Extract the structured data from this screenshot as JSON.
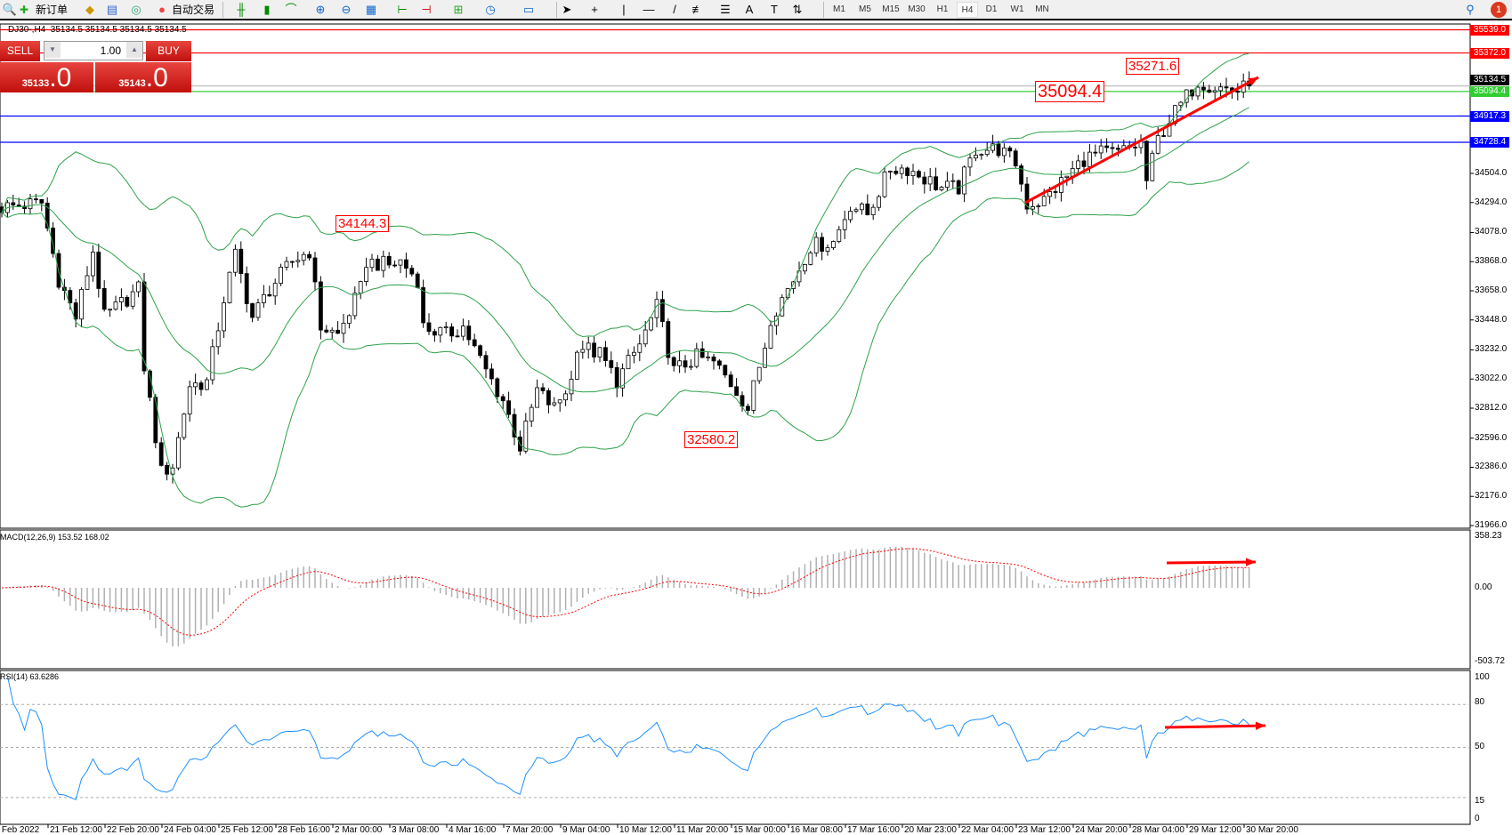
{
  "toolbar": {
    "new_order": "新订单",
    "auto_trading": "自动交易",
    "timeframes": [
      "M1",
      "M5",
      "M15",
      "M30",
      "H1",
      "H4",
      "D1",
      "W1",
      "MN"
    ],
    "active_timeframe": "H4",
    "notifications": "1"
  },
  "chart": {
    "header": "DJ30-,H4  35134.5 35134.5 35134.5 35134.5"
  },
  "one_click": {
    "sell": "SELL",
    "buy": "BUY",
    "volume": "1.00",
    "bid_main": "35133",
    "bid_pip": ".0",
    "ask_main": "35143",
    "ask_pip": ".0"
  },
  "hlines": [
    {
      "price": "35539.0",
      "color": "#ff0000"
    },
    {
      "price": "35372.0",
      "color": "#ff0000"
    },
    {
      "price": "35134.5",
      "color": "#000000",
      "line": "#c0c0c0"
    },
    {
      "price": "35094.4",
      "color": "#32cd32"
    },
    {
      "price": "34917.3",
      "color": "#0000ff"
    },
    {
      "price": "34728.4",
      "color": "#0000ff"
    }
  ],
  "price_axis": [
    "34504.0",
    "34294.0",
    "34078.0",
    "33868.0",
    "33658.0",
    "33448.0",
    "33232.0",
    "33022.0",
    "32812.0",
    "32596.0",
    "32386.0",
    "32176.0",
    "31966.0"
  ],
  "annotations": [
    {
      "text": "34144.3"
    },
    {
      "text": "32580.2"
    },
    {
      "text": "35271.6"
    },
    {
      "text": "35094.4"
    }
  ],
  "macd": {
    "label": "MACD(12,26,9) 153.52 168.02",
    "axis": [
      "358.23",
      "0.00",
      "-503.72"
    ],
    "max": 358.23,
    "min": -503.72
  },
  "rsi": {
    "label": "RSI(14) 63.6286",
    "axis": [
      "100",
      "80",
      "50",
      "15",
      "0"
    ],
    "levels": [
      80,
      50,
      15
    ]
  },
  "time_axis": [
    "18 Feb 2022",
    "21 Feb 12:00",
    "22 Feb 20:00",
    "24 Feb 04:00",
    "25 Feb 12:00",
    "28 Feb 16:00",
    "2 Mar 00:00",
    "3 Mar 08:00",
    "4 Mar 16:00",
    "7 Mar 20:00",
    "9 Mar 04:00",
    "10 Mar 12:00",
    "11 Mar 20:00",
    "15 Mar 00:00",
    "16 Mar 08:00",
    "17 Mar 16:00",
    "20 Mar 23:00",
    "22 Mar 04:00",
    "23 Mar 12:00",
    "24 Mar 20:00",
    "28 Mar 04:00",
    "29 Mar 12:00",
    "30 Mar 20:00"
  ],
  "chart_data": {
    "type": "candlestick",
    "symbol": "DJ30-",
    "timeframe": "H4",
    "ylim": [
      31966,
      35600
    ],
    "close_anchors": [
      [
        0,
        34260
      ],
      [
        7,
        34290
      ],
      [
        10,
        33741
      ],
      [
        13,
        33466
      ],
      [
        16,
        33946
      ],
      [
        18,
        33466
      ],
      [
        24,
        33670
      ],
      [
        25,
        33113
      ],
      [
        28,
        32350
      ],
      [
        30,
        32400
      ],
      [
        33,
        32978
      ],
      [
        36,
        33000
      ],
      [
        39,
        33600
      ],
      [
        41,
        33915
      ],
      [
        44,
        33466
      ],
      [
        47,
        33670
      ],
      [
        51,
        33870
      ],
      [
        54,
        33946
      ],
      [
        56,
        33400
      ],
      [
        59,
        33340
      ],
      [
        63,
        33670
      ],
      [
        64,
        33870
      ],
      [
        68,
        33840
      ],
      [
        70,
        33870
      ],
      [
        73,
        33740
      ],
      [
        74,
        33400
      ],
      [
        78,
        33340
      ],
      [
        81,
        33400
      ],
      [
        85,
        33080
      ],
      [
        88,
        32870
      ],
      [
        91,
        32530
      ],
      [
        94,
        32940
      ],
      [
        97,
        32810
      ],
      [
        100,
        33010
      ],
      [
        101,
        33270
      ],
      [
        105,
        33200
      ],
      [
        108,
        33010
      ],
      [
        112,
        33270
      ],
      [
        115,
        33540
      ],
      [
        118,
        33080
      ],
      [
        122,
        33180
      ],
      [
        125,
        33140
      ],
      [
        129,
        32940
      ],
      [
        131,
        32810
      ],
      [
        134,
        33270
      ],
      [
        135,
        33466
      ],
      [
        139,
        33740
      ],
      [
        142,
        33980
      ],
      [
        146,
        34010
      ],
      [
        149,
        34280
      ],
      [
        152,
        34210
      ],
      [
        156,
        34540
      ],
      [
        159,
        34540
      ],
      [
        162,
        34470
      ],
      [
        165,
        34400
      ],
      [
        168,
        34400
      ],
      [
        171,
        34680
      ],
      [
        175,
        34680
      ],
      [
        178,
        34580
      ],
      [
        180,
        34280
      ],
      [
        183,
        34310
      ],
      [
        186,
        34440
      ],
      [
        190,
        34610
      ],
      [
        193,
        34650
      ],
      [
        196,
        34650
      ],
      [
        200,
        34720
      ],
      [
        201,
        34450
      ],
      [
        203,
        34750
      ],
      [
        205,
        34890
      ],
      [
        207,
        35000
      ],
      [
        210,
        35170
      ],
      [
        213,
        35130
      ],
      [
        217,
        35100
      ],
      [
        219,
        35134.5
      ]
    ]
  },
  "colors": {
    "band": "#2ea24a",
    "macd_hist": "#b0b0b0",
    "signal": "#ff0000",
    "rsi": "#1e90ff",
    "arrow": "#ff0000"
  }
}
